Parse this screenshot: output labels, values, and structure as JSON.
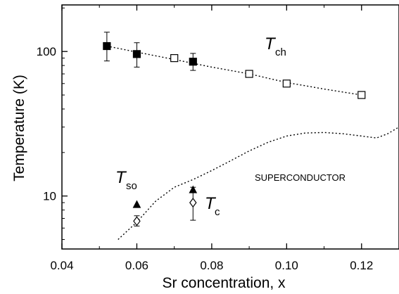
{
  "chart_data": {
    "type": "scatter",
    "xlabel": "Sr concentration,  x",
    "ylabel": "Temperature  (K)",
    "xlim": [
      0.04,
      0.13
    ],
    "ylim": [
      4.3,
      210
    ],
    "y_scale": "log",
    "x_ticks": [
      {
        "value": 0.04,
        "label": "0.04"
      },
      {
        "value": 0.06,
        "label": "0.06"
      },
      {
        "value": 0.08,
        "label": "0.08"
      },
      {
        "value": 0.1,
        "label": "0.10"
      },
      {
        "value": 0.12,
        "label": "0.12"
      }
    ],
    "y_ticks": [
      {
        "value": 10,
        "label": "10"
      },
      {
        "value": 100,
        "label": "100"
      }
    ],
    "grid": false,
    "legend": "none",
    "series": [
      {
        "name": "Tch",
        "marker": "filled-square",
        "points": [
          {
            "x": 0.052,
            "y": 109,
            "err_low": 86,
            "err_high": 136
          },
          {
            "x": 0.06,
            "y": 96,
            "err_low": 78,
            "err_high": 115
          },
          {
            "x": 0.075,
            "y": 85,
            "err_low": 74,
            "err_high": 97
          }
        ]
      },
      {
        "name": "Tch",
        "marker": "open-square",
        "points": [
          {
            "x": 0.07,
            "y": 90
          },
          {
            "x": 0.09,
            "y": 70
          },
          {
            "x": 0.1,
            "y": 60
          },
          {
            "x": 0.12,
            "y": 50
          }
        ]
      },
      {
        "name": "Tso",
        "marker": "filled-triangle",
        "points": [
          {
            "x": 0.06,
            "y": 8.7
          },
          {
            "x": 0.075,
            "y": 11
          }
        ]
      },
      {
        "name": "Tc",
        "marker": "open-diamond",
        "points": [
          {
            "x": 0.06,
            "y": 6.7,
            "err_low": 6.2,
            "err_high": 7.3
          },
          {
            "x": 0.075,
            "y": 9.0,
            "err_low": 6.8,
            "err_high": 11.5
          }
        ]
      }
    ],
    "tch_fit_line": [
      [
        0.052,
        109
      ],
      [
        0.06,
        99
      ],
      [
        0.07,
        88
      ],
      [
        0.08,
        78
      ],
      [
        0.09,
        70
      ],
      [
        0.1,
        61
      ],
      [
        0.11,
        55
      ],
      [
        0.12,
        50
      ]
    ],
    "superconducting_boundary": [
      [
        0.055,
        5.0
      ],
      [
        0.06,
        6.6
      ],
      [
        0.065,
        9.2
      ],
      [
        0.07,
        11.5
      ],
      [
        0.075,
        13.0
      ],
      [
        0.08,
        15.0
      ],
      [
        0.085,
        17.5
      ],
      [
        0.09,
        20.5
      ],
      [
        0.095,
        23.5
      ],
      [
        0.1,
        26.0
      ],
      [
        0.105,
        27.3
      ],
      [
        0.11,
        27.5
      ],
      [
        0.115,
        27.0
      ],
      [
        0.12,
        26.0
      ],
      [
        0.124,
        25.2
      ],
      [
        0.127,
        27.0
      ],
      [
        0.13,
        30.0
      ]
    ],
    "annotations": {
      "tch_main": "T",
      "tch_sub": "ch",
      "tso_main": "T",
      "tso_sub": "so",
      "tc_main": "T",
      "tc_sub": "c",
      "region_label": "SUPERCONDUCTOR"
    }
  }
}
